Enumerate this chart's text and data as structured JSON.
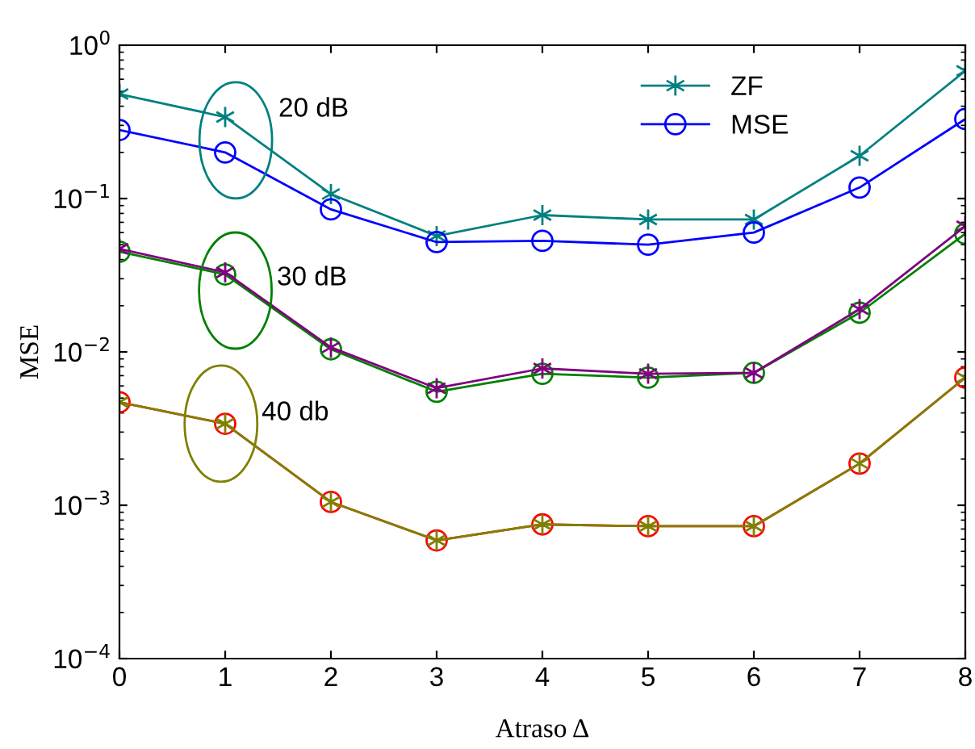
{
  "chart_data": {
    "type": "line",
    "xlabel": "Atraso Δ",
    "ylabel": "MSE",
    "log": "y",
    "x": [
      0,
      1,
      2,
      3,
      4,
      5,
      6,
      7,
      8
    ],
    "xlim": [
      0,
      8
    ],
    "xticks": [
      0,
      1,
      2,
      3,
      4,
      5,
      6,
      7,
      8
    ],
    "ylim": [
      0.0001,
      1
    ],
    "yticks": [
      {
        "value": 0.0001,
        "label": "10$^{−4}$"
      },
      {
        "value": 0.001,
        "label": "10$^{−3}$"
      },
      {
        "value": 0.01,
        "label": "10$^{−2}$"
      },
      {
        "value": 0.1,
        "label": "10$^{−1}$"
      },
      {
        "value": 1,
        "label": "10$^{0}$"
      }
    ],
    "grid": false,
    "legend": "top right",
    "series": [
      {
        "name": "ZF",
        "color": "#008080",
        "marker": "cross",
        "values": [
          0.48,
          0.34,
          0.107,
          0.057,
          0.078,
          0.073,
          0.073,
          0.19,
          0.68
        ]
      },
      {
        "name": "MSE",
        "color": "#0000ff",
        "marker": "circle",
        "values": [
          0.28,
          0.2,
          0.085,
          0.052,
          0.053,
          0.05,
          0.06,
          0.118,
          0.33
        ]
      },
      {
        "color": "#008000",
        "marker": "circle",
        "values": [
          0.045,
          0.032,
          0.0104,
          0.0055,
          0.0072,
          0.0068,
          0.0073,
          0.018,
          0.059
        ]
      },
      {
        "color": "#800080",
        "marker": "cross",
        "values": [
          0.047,
          0.033,
          0.0107,
          0.0058,
          0.0078,
          0.0072,
          0.0073,
          0.019,
          0.066
        ]
      },
      {
        "color": "#ff0000",
        "marker": "circle",
        "values": [
          0.0047,
          0.0034,
          0.00105,
          0.00059,
          0.00075,
          0.00073,
          0.00073,
          0.00187,
          0.0068
        ]
      },
      {
        "color": "#808000",
        "marker": "cross",
        "values": [
          0.0047,
          0.0034,
          0.00105,
          0.00059,
          0.00075,
          0.00073,
          0.00073,
          0.00187,
          0.0068
        ]
      }
    ],
    "annotations": [
      "20 dB",
      "30 dB",
      "40 db"
    ]
  }
}
